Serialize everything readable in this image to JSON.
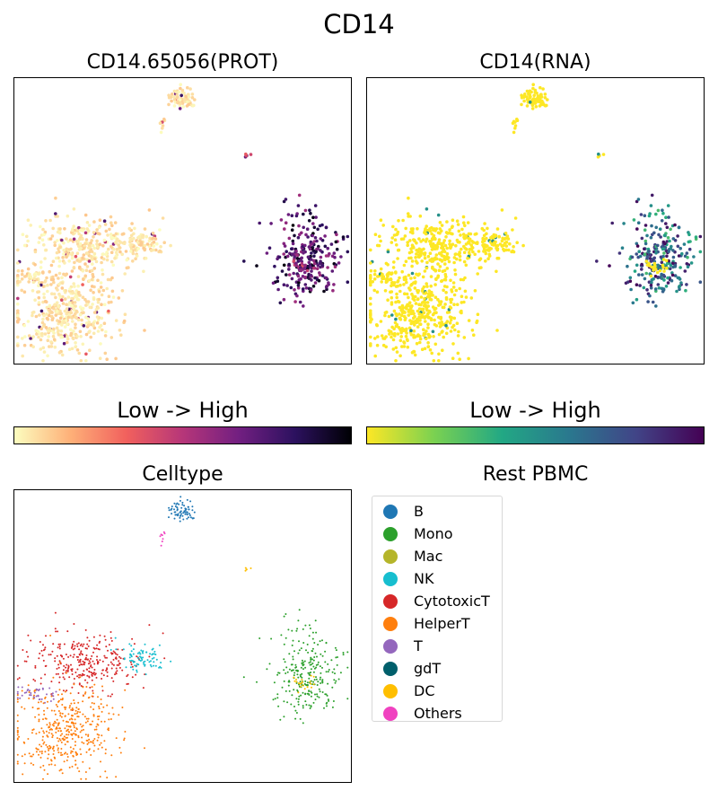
{
  "figure": {
    "title": "CD14",
    "legend_title": "Rest PBMC",
    "colorbar_label_left": "Low  ->  High",
    "colorbar_label_right": "Low  ->  High"
  },
  "chart_data": [
    {
      "type": "scatter",
      "title": "CD14.65056(PROT)",
      "xlabel": "",
      "ylabel": "",
      "colormap": "magma_r",
      "colormap_stops": [
        "#fcfdbf",
        "#feb078",
        "#f1605d",
        "#b63679",
        "#721f81",
        "#2c115f",
        "#000004"
      ],
      "axis_ticks": false,
      "clusters_low_high": "expression high in Mono cluster, low elsewhere"
    },
    {
      "type": "scatter",
      "title": "CD14(RNA)",
      "xlabel": "",
      "ylabel": "",
      "colormap": "viridis_r",
      "colormap_stops": [
        "#fde725",
        "#7ad151",
        "#22a884",
        "#2a788e",
        "#414487",
        "#440154"
      ],
      "axis_ticks": false
    },
    {
      "type": "scatter",
      "title": "Celltype",
      "xlabel": "",
      "ylabel": "",
      "axis_ticks": false,
      "legend": [
        {
          "label": "B",
          "color": "#1f77b4"
        },
        {
          "label": "Mono",
          "color": "#2ca02c"
        },
        {
          "label": "Mac",
          "color": "#b5b52a"
        },
        {
          "label": "NK",
          "color": "#17becf"
        },
        {
          "label": "CytotoxicT",
          "color": "#d62728"
        },
        {
          "label": "HelperT",
          "color": "#ff7f0e"
        },
        {
          "label": "T",
          "color": "#9467bd"
        },
        {
          "label": "gdT",
          "color": "#005f6b"
        },
        {
          "label": "DC",
          "color": "#ffbf00"
        },
        {
          "label": "Others",
          "color": "#f042c0"
        }
      ]
    }
  ]
}
